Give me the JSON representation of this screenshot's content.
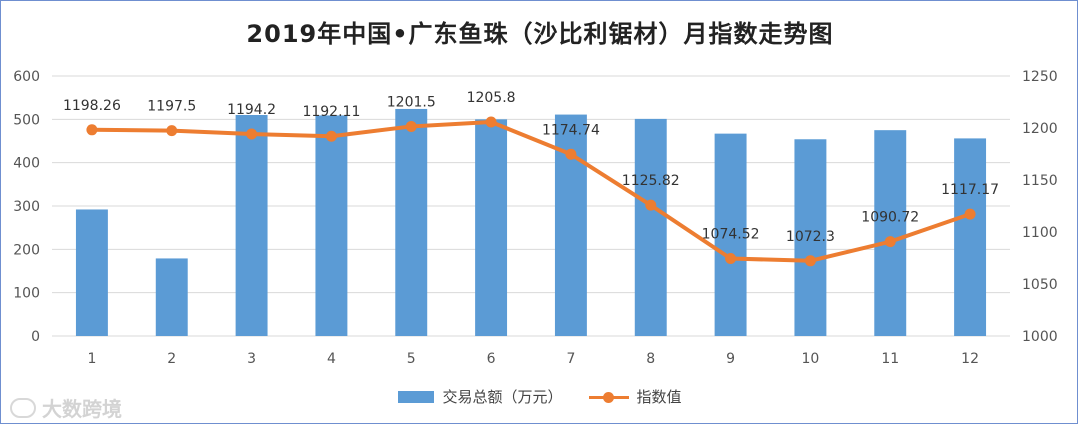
{
  "chart_data": {
    "type": "bar",
    "title": "2019年中国•广东鱼珠（沙比利锯材）月指数走势图",
    "categories": [
      "1",
      "2",
      "3",
      "4",
      "5",
      "6",
      "7",
      "8",
      "9",
      "10",
      "11",
      "12"
    ],
    "series": [
      {
        "name": "交易总额（万元）",
        "type": "bar",
        "axis": "left",
        "color": "#5b9bd5",
        "values": [
          292,
          179,
          510,
          509,
          524,
          500,
          511,
          501,
          467,
          454,
          475,
          456
        ]
      },
      {
        "name": "指数值",
        "type": "line",
        "axis": "right",
        "color": "#ed7d31",
        "values": [
          1198.26,
          1197.5,
          1194.2,
          1192.11,
          1201.5,
          1205.8,
          1174.74,
          1125.82,
          1074.52,
          1072.3,
          1090.72,
          1117.17
        ],
        "data_labels": [
          "1198.26",
          "1197.5",
          "1194.2",
          "1192.11",
          "1201.5",
          "1205.8",
          "1174.74",
          "1125.82",
          "1074.52",
          "1072.3",
          "1090.72",
          "1117.17"
        ]
      }
    ],
    "y_left": {
      "min": 0,
      "max": 600,
      "ticks": [
        "0",
        "100",
        "200",
        "300",
        "400",
        "500",
        "600"
      ]
    },
    "y_right": {
      "min": 1000,
      "max": 1250,
      "ticks": [
        "1000",
        "1050",
        "1100",
        "1150",
        "1200",
        "1250"
      ]
    },
    "grid": true,
    "legend": "bottom-center"
  },
  "watermark": {
    "text": "大数跨境"
  }
}
